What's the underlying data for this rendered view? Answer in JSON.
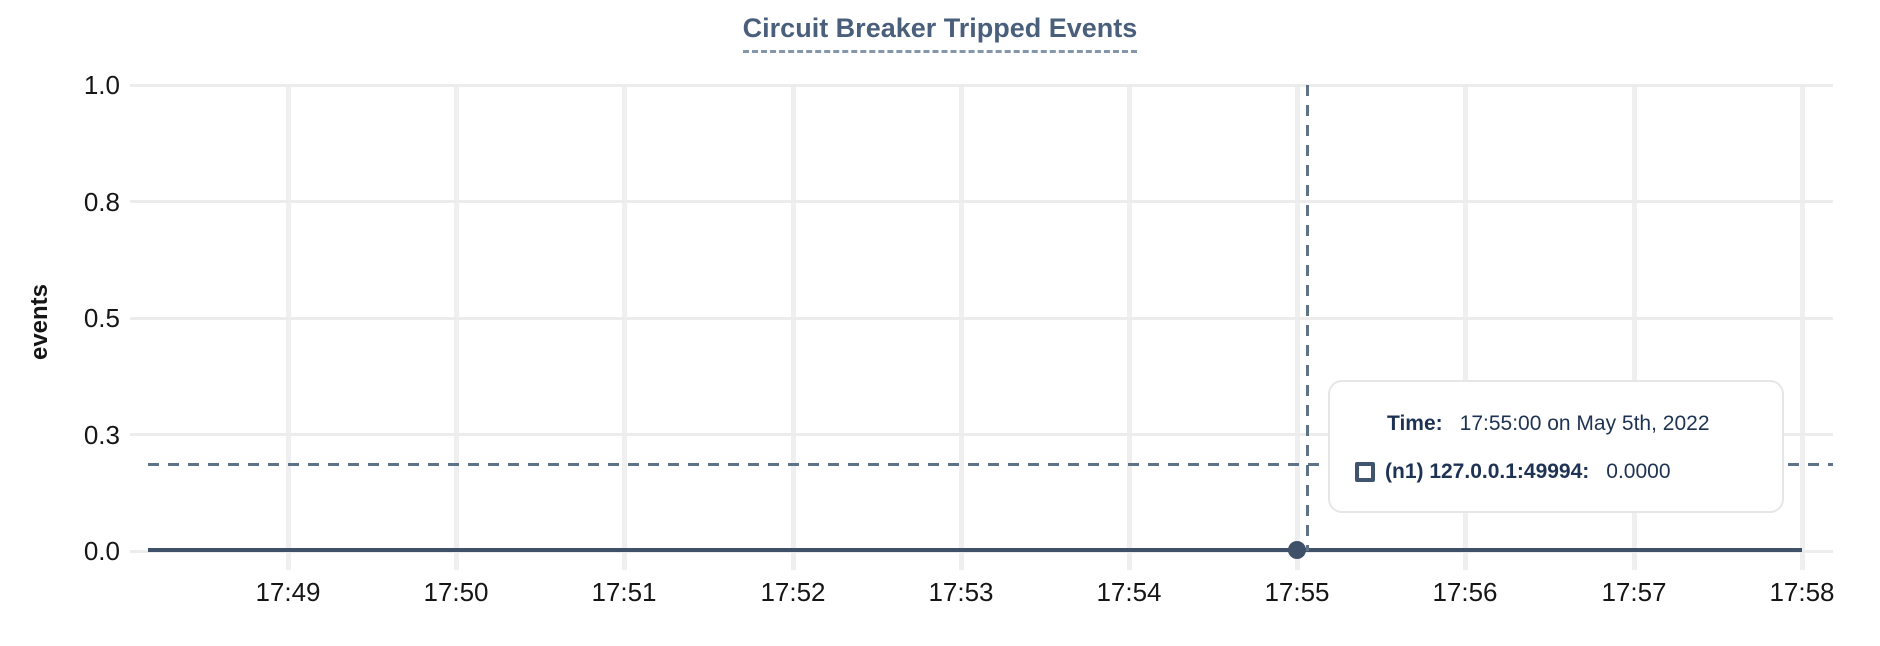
{
  "chart_data": {
    "type": "line",
    "title": "Circuit Breaker Tripped Events",
    "xlabel": "",
    "ylabel": "events",
    "ylim": [
      0,
      1
    ],
    "grid": true,
    "legend_position": "tooltip",
    "x_tick_labels": [
      "17:49",
      "17:50",
      "17:51",
      "17:52",
      "17:53",
      "17:54",
      "17:55",
      "17:56",
      "17:57",
      "17:58"
    ],
    "y_tick_labels": [
      "1.0",
      "0.8",
      "0.5",
      "0.3",
      "0.0"
    ],
    "series": [
      {
        "name": "(n1) 127.0.0.1:49994",
        "color": "#3e5168",
        "x": [
          "17:49",
          "17:50",
          "17:51",
          "17:52",
          "17:53",
          "17:54",
          "17:55",
          "17:56",
          "17:57",
          "17:58"
        ],
        "values": [
          0,
          0,
          0,
          0,
          0,
          0,
          0,
          0,
          0,
          0
        ]
      }
    ],
    "highlighted_point": {
      "x": "17:55",
      "y": 0
    }
  },
  "tooltip": {
    "time_label": "Time:",
    "time_value": "17:55:00 on May 5th, 2022",
    "series_label": "(n1) 127.0.0.1:49994:",
    "series_value": "0.0000"
  },
  "colors": {
    "title": "#4a5f7b",
    "title_underline": "#8595aa",
    "series_line": "#3e5168",
    "crosshair": "#5e7388",
    "gridline_h": "#ececec",
    "gridline_v": "#efefef",
    "axis_text": "#161616",
    "tooltip_text": "#1e3253",
    "tooltip_border": "#e6e6e6",
    "swatch": "#41546f"
  }
}
